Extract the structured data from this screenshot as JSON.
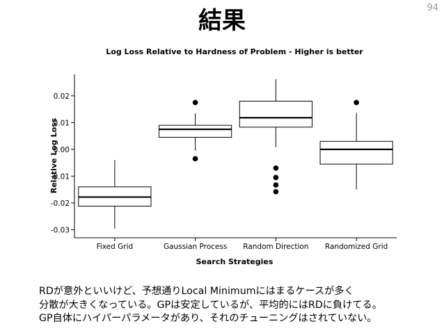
{
  "slide": {
    "title": "結果",
    "page_number": "94",
    "notes": [
      "RDが意外といいけど、予想通りLocal Minimumにはまるケースが多く",
      "分散が大きくなっている。GPは安定しているが、平均的にはRDに負けてる。",
      "GP自体にハイパーパラメータがあり、それのチューニングはされていない。"
    ]
  },
  "chart_data": {
    "type": "box",
    "title": "Log Loss Relative to Hardness of Problem - Higher is better",
    "xlabel": "Search Strategies",
    "ylabel": "Relative Log Loss",
    "ylim": [
      -0.033,
      0.028
    ],
    "yticks": [
      -0.03,
      -0.02,
      -0.01,
      0.0,
      0.01,
      0.02
    ],
    "ytick_labels": [
      "-0.03",
      "-0.02",
      "-0.01",
      "0.00",
      "0.01",
      "0.02"
    ],
    "grid": false,
    "categories": [
      "Fixed Grid",
      "Gaussian Process",
      "Random Direction",
      "Randomized Grid"
    ],
    "boxes": [
      {
        "category": "Fixed Grid",
        "whisker_low": -0.0295,
        "q1": -0.0212,
        "median": -0.0178,
        "q3": -0.014,
        "whisker_high": -0.004,
        "outliers": []
      },
      {
        "category": "Gaussian Process",
        "whisker_low": -0.0005,
        "q1": 0.0045,
        "median": 0.0075,
        "q3": 0.009,
        "whisker_high": 0.0135,
        "outliers": [
          0.0175,
          -0.0035
        ]
      },
      {
        "category": "Random Direction",
        "whisker_low": 0.0008,
        "q1": 0.0083,
        "median": 0.0118,
        "q3": 0.018,
        "whisker_high": 0.0262,
        "outliers": [
          -0.007,
          -0.0105,
          -0.0133,
          -0.0158
        ]
      },
      {
        "category": "Randomized Grid",
        "whisker_low": -0.015,
        "q1": -0.0055,
        "median": 0.0,
        "q3": 0.003,
        "whisker_high": 0.0135,
        "outliers": [
          0.0175
        ]
      }
    ],
    "colors": {
      "box_fill": "#ffffff",
      "stroke": "#000000",
      "outlier": "#000000"
    }
  }
}
